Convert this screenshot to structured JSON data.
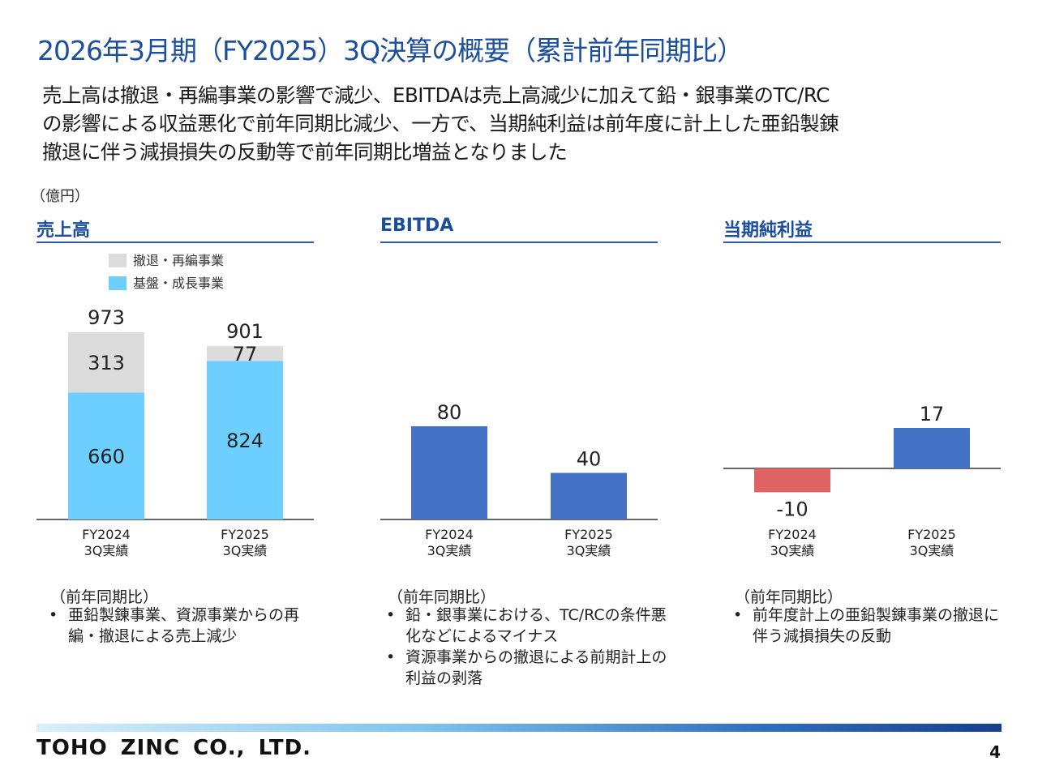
{
  "title": "2026年3月期（FY2025）3Q決算の概要（累計前年同期比）",
  "summary_lines": [
    "売上高は撤退・再編事業の影響で減少、EBITDAは売上高減少に加えて鉛・銀事業のTC/RC",
    "の影響による収益悪化で前年同期比減少、一方で、当期純利益は前年度に計上した亜鉛製錬",
    "撤退に伴う減損損失の反動等で前年同期比増益となりました"
  ],
  "unit": "（億円）",
  "colors": {
    "withdrawal": "#dcdcdc",
    "core": "#6ccfff",
    "ebitda": "#4472c4",
    "negative": "#e06363",
    "title": "#1b4f9b"
  },
  "categories_line1": [
    "FY2024",
    "FY2025"
  ],
  "categories_line2": [
    "3Q実績",
    "3Q実績"
  ],
  "chart_data": [
    {
      "type": "bar",
      "stacked": true,
      "title": "売上高",
      "categories": [
        "FY2024 3Q実績",
        "FY2025 3Q実績"
      ],
      "series": [
        {
          "name": "基盤・成長事業",
          "values": [
            660,
            824
          ],
          "color": "#6ccfff"
        },
        {
          "name": "撤退・再編事業",
          "values": [
            313,
            77
          ],
          "color": "#dcdcdc"
        }
      ],
      "totals": [
        973,
        901
      ],
      "legend": "top-left",
      "ylim": [
        0,
        973
      ]
    },
    {
      "type": "bar",
      "title": "EBITDA",
      "categories": [
        "FY2024 3Q実績",
        "FY2025 3Q実績"
      ],
      "values": [
        80,
        40
      ],
      "color": "#4472c4",
      "ylim": [
        0,
        80
      ]
    },
    {
      "type": "bar",
      "title": "当期純利益",
      "categories": [
        "FY2024 3Q実績",
        "FY2025 3Q実績"
      ],
      "values": [
        -10,
        17
      ],
      "colors": [
        "#e06363",
        "#4472c4"
      ],
      "ylim": [
        -10,
        17
      ]
    }
  ],
  "notes": [
    {
      "heading": "（前年同期比）",
      "items": [
        "亜鉛製錬事業、資源事業からの再編・撤退による売上減少"
      ]
    },
    {
      "heading": "（前年同期比）",
      "items": [
        "鉛・銀事業における、TC/RCの条件悪化などによるマイナス",
        "資源事業からの撤退による前期計上の利益の剥落"
      ]
    },
    {
      "heading": "（前年同期比）",
      "items": [
        "前年度計上の亜鉛製錬事業の撤退に伴う減損損失の反動"
      ]
    }
  ],
  "footer": {
    "company": "TOHO ZINC CO., LTD.",
    "page": "4"
  }
}
